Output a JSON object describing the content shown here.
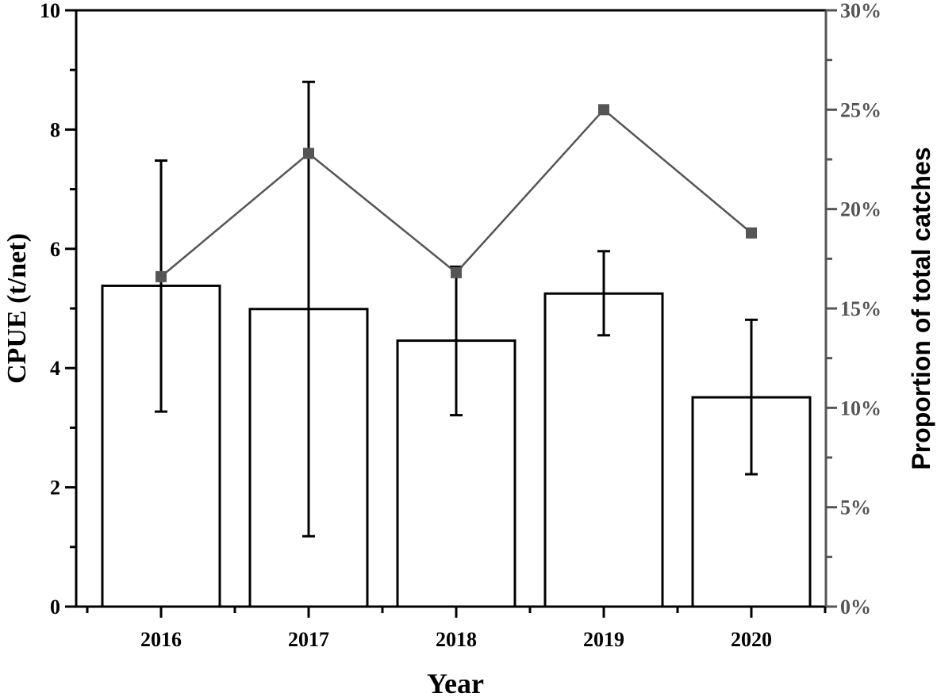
{
  "chart_data": {
    "type": "bar",
    "categories": [
      "2016",
      "2017",
      "2018",
      "2019",
      "2020"
    ],
    "xlabel": "Year",
    "ylabel": "CPUE (t/net)",
    "ylim": [
      0,
      10
    ],
    "yticks": [
      "0",
      "2",
      "4",
      "6",
      "8",
      "10"
    ],
    "y2label": "Proportion of total catches",
    "y2lim": [
      0,
      30
    ],
    "y2ticks": [
      "0%",
      "5%",
      "10%",
      "15%",
      "20%",
      "25%",
      "30%"
    ],
    "series": [
      {
        "type": "bar",
        "axis": "left",
        "values": [
          5.38,
          4.99,
          4.46,
          5.25,
          3.51
        ],
        "error_low": [
          3.27,
          1.18,
          3.21,
          4.55,
          2.22
        ],
        "error_high": [
          7.48,
          8.8,
          5.7,
          5.96,
          4.81
        ],
        "fill": "#ffffff",
        "stroke": "#000000"
      },
      {
        "type": "line",
        "axis": "right",
        "values": [
          16.6,
          22.8,
          16.8,
          25.0,
          18.8
        ],
        "color": "#555555",
        "marker": "square"
      }
    ],
    "grid": false,
    "legend": "none"
  }
}
